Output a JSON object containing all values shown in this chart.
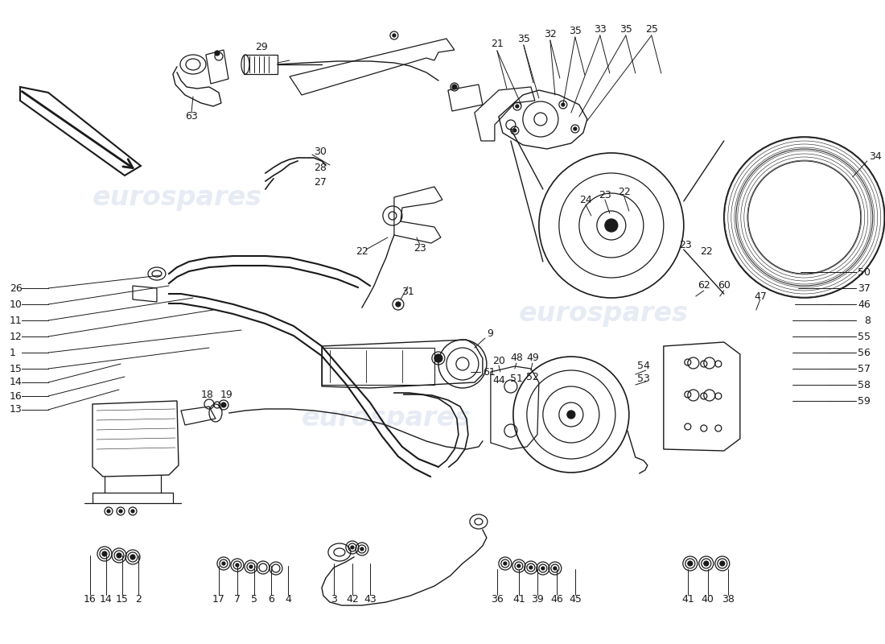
{
  "background_color": "#ffffff",
  "line_color": "#1a1a1a",
  "watermark_color": "#c8d4e8",
  "watermark_alpha": 0.45,
  "fig_width": 11.0,
  "fig_height": 8.0,
  "dpi": 100,
  "label_fontsize": 9,
  "top_labels": [
    [
      "21",
      618,
      55
    ],
    [
      "35",
      651,
      48
    ],
    [
      "32",
      684,
      42
    ],
    [
      "35",
      715,
      38
    ],
    [
      "33",
      746,
      36
    ],
    [
      "35",
      778,
      36
    ],
    [
      "25",
      810,
      36
    ]
  ],
  "right_labels": [
    [
      "50",
      1082,
      338
    ],
    [
      "37",
      1082,
      358
    ],
    [
      "46",
      1082,
      378
    ],
    [
      "8",
      1082,
      398
    ],
    [
      "55",
      1082,
      418
    ],
    [
      "56",
      1082,
      438
    ],
    [
      "57",
      1082,
      458
    ],
    [
      "58",
      1082,
      478
    ],
    [
      "59",
      1082,
      498
    ]
  ],
  "left_labels": [
    [
      "26",
      12,
      358
    ],
    [
      "10",
      12,
      378
    ],
    [
      "11",
      12,
      398
    ],
    [
      "12",
      12,
      418
    ],
    [
      "1",
      12,
      438
    ],
    [
      "15",
      12,
      458
    ],
    [
      "14",
      12,
      475
    ],
    [
      "16",
      12,
      492
    ],
    [
      "13",
      12,
      509
    ]
  ],
  "bottom_grp1": [
    [
      "16",
      112,
      745
    ],
    [
      "14",
      132,
      745
    ],
    [
      "15",
      152,
      745
    ],
    [
      "2",
      172,
      745
    ]
  ],
  "bottom_grp2": [
    [
      "17",
      272,
      745
    ],
    [
      "7",
      295,
      745
    ],
    [
      "5",
      316,
      745
    ],
    [
      "6",
      337,
      745
    ],
    [
      "4",
      358,
      745
    ]
  ],
  "bottom_grp3": [
    [
      "3",
      415,
      745
    ],
    [
      "42",
      438,
      745
    ],
    [
      "43",
      460,
      745
    ]
  ],
  "bottom_grp4": [
    [
      "36",
      618,
      745
    ],
    [
      "41",
      645,
      745
    ],
    [
      "39",
      668,
      745
    ],
    [
      "46",
      692,
      745
    ],
    [
      "45",
      715,
      745
    ]
  ],
  "bottom_grp5": [
    [
      "41",
      855,
      745
    ],
    [
      "40",
      880,
      745
    ],
    [
      "38",
      905,
      745
    ]
  ]
}
